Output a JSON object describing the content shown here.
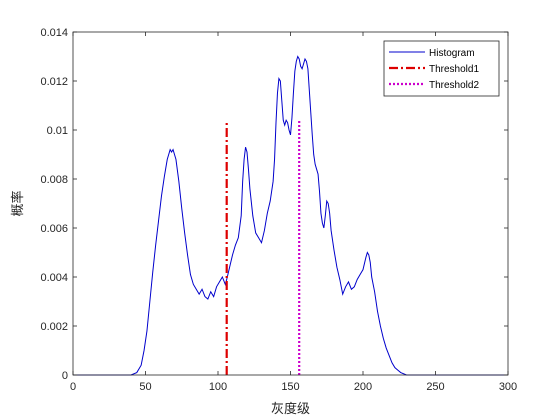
{
  "chart_data": {
    "type": "line",
    "title": "",
    "xlabel": "灰度级",
    "ylabel": "概率",
    "xlim": [
      0,
      300
    ],
    "ylim": [
      0,
      0.014
    ],
    "x_ticks": [
      0,
      50,
      100,
      150,
      200,
      250,
      300
    ],
    "x_tick_labels": [
      "0",
      "50",
      "100",
      "150",
      "200",
      "250",
      "300"
    ],
    "y_ticks": [
      0,
      0.002,
      0.004,
      0.006,
      0.008,
      0.01,
      0.012,
      0.014
    ],
    "y_tick_labels": [
      "0",
      "0.002",
      "0.004",
      "0.006",
      "0.008",
      "0.01",
      "0.012",
      "0.014"
    ],
    "grid": false,
    "legend_position": "top-right",
    "series": [
      {
        "name": "Histogram",
        "style": "solid",
        "color": "#0000cc",
        "points": [
          [
            0,
            0
          ],
          [
            20,
            0
          ],
          [
            40,
            0
          ],
          [
            44,
            0.0001
          ],
          [
            47,
            0.0004
          ],
          [
            49,
            0.001
          ],
          [
            51,
            0.0018
          ],
          [
            53,
            0.003
          ],
          [
            55,
            0.0042
          ],
          [
            57,
            0.0053
          ],
          [
            59,
            0.0063
          ],
          [
            61,
            0.0073
          ],
          [
            63,
            0.0081
          ],
          [
            65,
            0.0088
          ],
          [
            67,
            0.0092
          ],
          [
            68,
            0.0091
          ],
          [
            69,
            0.0092
          ],
          [
            70,
            0.009
          ],
          [
            71,
            0.0088
          ],
          [
            73,
            0.0079
          ],
          [
            75,
            0.0068
          ],
          [
            77,
            0.0058
          ],
          [
            79,
            0.0049
          ],
          [
            81,
            0.0041
          ],
          [
            83,
            0.0037
          ],
          [
            85,
            0.0035
          ],
          [
            87,
            0.0033
          ],
          [
            89,
            0.0035
          ],
          [
            91,
            0.0032
          ],
          [
            93,
            0.0031
          ],
          [
            95,
            0.0034
          ],
          [
            97,
            0.0032
          ],
          [
            99,
            0.0036
          ],
          [
            101,
            0.0038
          ],
          [
            103,
            0.004
          ],
          [
            105,
            0.0037
          ],
          [
            106,
            0.0039
          ],
          [
            108,
            0.0044
          ],
          [
            110,
            0.0049
          ],
          [
            112,
            0.0053
          ],
          [
            114,
            0.0056
          ],
          [
            116,
            0.0065
          ],
          [
            117,
            0.0079
          ],
          [
            118,
            0.0088
          ],
          [
            119,
            0.0093
          ],
          [
            120,
            0.0091
          ],
          [
            121,
            0.0084
          ],
          [
            122,
            0.0076
          ],
          [
            124,
            0.0065
          ],
          [
            126,
            0.0058
          ],
          [
            128,
            0.0056
          ],
          [
            130,
            0.0054
          ],
          [
            132,
            0.0059
          ],
          [
            134,
            0.0066
          ],
          [
            136,
            0.0071
          ],
          [
            138,
            0.0079
          ],
          [
            139,
            0.0088
          ],
          [
            140,
            0.0103
          ],
          [
            141,
            0.0115
          ],
          [
            142,
            0.0121
          ],
          [
            143,
            0.012
          ],
          [
            144,
            0.0112
          ],
          [
            145,
            0.0104
          ],
          [
            146,
            0.0102
          ],
          [
            147,
            0.0104
          ],
          [
            148,
            0.0103
          ],
          [
            149,
            0.01
          ],
          [
            150,
            0.0098
          ],
          [
            151,
            0.0105
          ],
          [
            152,
            0.0115
          ],
          [
            153,
            0.0124
          ],
          [
            154,
            0.0128
          ],
          [
            155,
            0.013
          ],
          [
            156,
            0.0129
          ],
          [
            157,
            0.0126
          ],
          [
            158,
            0.0125
          ],
          [
            159,
            0.0127
          ],
          [
            160,
            0.0129
          ],
          [
            161,
            0.0128
          ],
          [
            162,
            0.0125
          ],
          [
            163,
            0.0116
          ],
          [
            164,
            0.0107
          ],
          [
            165,
            0.0098
          ],
          [
            166,
            0.009
          ],
          [
            167,
            0.0086
          ],
          [
            168,
            0.0084
          ],
          [
            169,
            0.0082
          ],
          [
            170,
            0.0075
          ],
          [
            171,
            0.0066
          ],
          [
            172,
            0.0062
          ],
          [
            173,
            0.006
          ],
          [
            174,
            0.0065
          ],
          [
            175,
            0.0071
          ],
          [
            176,
            0.007
          ],
          [
            177,
            0.0066
          ],
          [
            178,
            0.0059
          ],
          [
            180,
            0.0051
          ],
          [
            182,
            0.0044
          ],
          [
            184,
            0.0039
          ],
          [
            186,
            0.0033
          ],
          [
            188,
            0.0036
          ],
          [
            190,
            0.0038
          ],
          [
            192,
            0.0035
          ],
          [
            194,
            0.0036
          ],
          [
            196,
            0.0039
          ],
          [
            198,
            0.0041
          ],
          [
            200,
            0.0043
          ],
          [
            202,
            0.0048
          ],
          [
            203,
            0.005
          ],
          [
            204,
            0.0049
          ],
          [
            205,
            0.0046
          ],
          [
            206,
            0.004
          ],
          [
            208,
            0.0034
          ],
          [
            210,
            0.0026
          ],
          [
            212,
            0.002
          ],
          [
            214,
            0.0015
          ],
          [
            216,
            0.0011
          ],
          [
            218,
            0.0008
          ],
          [
            220,
            0.0005
          ],
          [
            222,
            0.0003
          ],
          [
            224,
            0.0002
          ],
          [
            226,
            0.0001
          ],
          [
            230,
            0
          ],
          [
            260,
            0
          ],
          [
            300,
            0
          ]
        ]
      },
      {
        "name": "Threshold1",
        "style": "dash-dot",
        "color": "#dd0000",
        "points": [
          [
            106,
            0
          ],
          [
            106,
            0.0104
          ]
        ]
      },
      {
        "name": "Threshold2",
        "style": "dotted",
        "color": "#cc00cc",
        "points": [
          [
            156,
            0
          ],
          [
            156,
            0.0104
          ]
        ]
      }
    ]
  }
}
